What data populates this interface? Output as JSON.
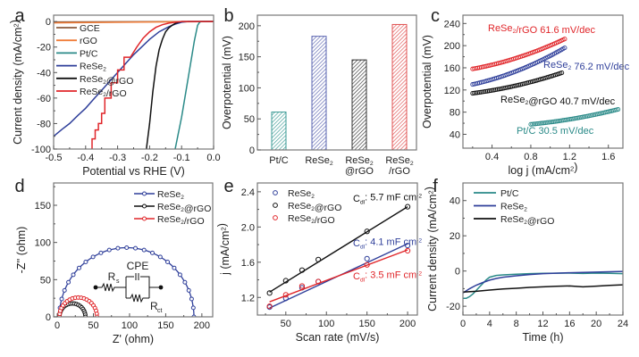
{
  "figure_title": "",
  "chart_data": [
    {
      "panel": "a",
      "type": "line",
      "title": "",
      "xlabel": "Potential vs RHE (V)",
      "ylabel": "Current density (mA/cm²)",
      "xlim": [
        -0.5,
        0.0
      ],
      "ylim": [
        -100,
        5
      ],
      "xticks": [
        "-0.5",
        "-0.4",
        "-0.3",
        "-0.2",
        "-0.1",
        "0.0"
      ],
      "yticks": [
        "0",
        "-20",
        "-40",
        "-60",
        "-80",
        "-100"
      ],
      "legend": "top-left",
      "series": [
        {
          "name": "GCE",
          "color": "#8b5a3c",
          "x": [
            -0.5,
            0.0
          ],
          "y": [
            -0.3,
            0
          ]
        },
        {
          "name": "rGO",
          "color": "#f07f3c",
          "x": [
            -0.5,
            0.0
          ],
          "y": [
            -1,
            0
          ]
        },
        {
          "name": "Pt/C",
          "color": "#2a8a88",
          "x": [
            -0.12,
            -0.1,
            -0.08,
            -0.06,
            -0.05,
            -0.045,
            -0.04,
            -0.03,
            0.0
          ],
          "y": [
            -100,
            -75,
            -45,
            -15,
            -3,
            -1,
            0,
            0,
            0
          ]
        },
        {
          "name": "ReSe₂",
          "color": "#2f3f9a",
          "x": [
            -0.5,
            -0.45,
            -0.4,
            -0.35,
            -0.3,
            -0.25,
            -0.2,
            -0.17,
            -0.14,
            -0.12,
            -0.1,
            -0.08,
            0.0
          ],
          "y": [
            -90,
            -80,
            -68,
            -54,
            -40,
            -26,
            -14,
            -8,
            -4,
            -2,
            -0.5,
            0,
            0
          ]
        },
        {
          "name": "ReSe₂@rGO",
          "color": "#111111",
          "x": [
            -0.21,
            -0.2,
            -0.19,
            -0.18,
            -0.17,
            -0.16,
            -0.15,
            -0.14,
            -0.13,
            -0.12,
            -0.11,
            -0.1,
            0.0
          ],
          "y": [
            -100,
            -80,
            -55,
            -35,
            -22,
            -14,
            -8,
            -5,
            -3,
            -1.5,
            -0.5,
            0,
            0
          ]
        },
        {
          "name": "ReSe₂/rGO",
          "color": "#e0262a",
          "x": [
            -0.38,
            -0.37,
            -0.36,
            -0.35,
            -0.34,
            -0.32,
            -0.3,
            -0.28,
            -0.26,
            -0.24,
            -0.22,
            -0.2,
            -0.18,
            -0.16,
            -0.14,
            -0.12,
            -0.1,
            0.0
          ],
          "y": [
            -100,
            -92,
            -85,
            -80,
            -72,
            -60,
            -48,
            -38,
            -28,
            -20,
            -13,
            -8,
            -4.5,
            -2.5,
            -1.2,
            -0.5,
            0,
            0
          ]
        }
      ]
    },
    {
      "panel": "b",
      "type": "bar",
      "title": "",
      "xlabel": "",
      "ylabel": "Overpotential (mV)",
      "ylim": [
        0,
        217
      ],
      "yticks": [
        "0",
        "50",
        "100",
        "150",
        "200"
      ],
      "categories": [
        "Pt/C",
        "ReSe₂",
        "ReSe₂ @rGO",
        "ReSe₂ /rGO"
      ],
      "category_lines": [
        [
          "Pt/C"
        ],
        [
          "ReSe₂"
        ],
        [
          "ReSe₂",
          "@rGO"
        ],
        [
          "ReSe₂",
          "/rGO"
        ]
      ],
      "values": [
        61,
        183,
        145,
        202
      ],
      "colors": [
        "#3a9a94",
        "#5a64b0",
        "#333333",
        "#e05050"
      ]
    },
    {
      "panel": "c",
      "type": "scatter",
      "title": "",
      "xlabel": "log j (mA/cm²)",
      "ylabel": "Overpotential (mV)",
      "xlim": [
        0.1,
        1.75
      ],
      "ylim": [
        15,
        255
      ],
      "xticks": [
        "0.4",
        "0.8",
        "1.2",
        "1.6"
      ],
      "yticks": [
        "40",
        "80",
        "120",
        "160",
        "200",
        "240"
      ],
      "series": [
        {
          "name": "ReSe₂/rGO",
          "color": "#e0262a",
          "annotation": "ReSe₂/rGO  61.6 mV/dec",
          "x_range": [
            0.2,
            1.15
          ],
          "y_range": [
            158,
            212
          ]
        },
        {
          "name": "ReSe₂",
          "color": "#2f3f9a",
          "annotation": "ReSe₂  76.2 mV/dec",
          "x_range": [
            0.2,
            1.15
          ],
          "y_range": [
            130,
            196
          ]
        },
        {
          "name": "ReSe₂@rGO",
          "color": "#111111",
          "annotation": "ReSe₂@rGO  40.7 mV/dec",
          "x_range": [
            0.2,
            1.12
          ],
          "y_range": [
            114,
            151
          ]
        },
        {
          "name": "Pt/C",
          "color": "#2a8a88",
          "annotation": "Pt/C  30.5 mV/dec",
          "x_range": [
            0.8,
            1.7
          ],
          "y_range": [
            58,
            85
          ]
        }
      ]
    },
    {
      "panel": "d",
      "type": "scatter",
      "title": "",
      "xlabel": "Z' (ohm)",
      "ylabel": "-Z'' (ohm)",
      "xlim": [
        -5,
        215
      ],
      "ylim": [
        0,
        180
      ],
      "xticks": [
        "0",
        "50",
        "100",
        "150",
        "200"
      ],
      "yticks": [
        "0",
        "50",
        "100",
        "150"
      ],
      "legend": "top-right",
      "series": [
        {
          "name": "ReSe₂",
          "color": "#2f3f9a",
          "center": 96,
          "radius": 93
        },
        {
          "name": "ReSe₂@rGO",
          "color": "#111111",
          "center": 21,
          "radius": 18
        },
        {
          "name": "ReSe₂/rGO",
          "color": "#e0262a",
          "center": 29,
          "radius": 26
        }
      ],
      "circuit": {
        "labels": [
          "Rs",
          "CPE",
          "Rct"
        ]
      }
    },
    {
      "panel": "e",
      "type": "scatter",
      "title": "",
      "xlabel": "Scan rate (mV/s)",
      "ylabel": "j (mA/cm²)",
      "xlim": [
        15,
        212
      ],
      "ylim": [
        1.0,
        2.5
      ],
      "xticks": [
        "50",
        "100",
        "150",
        "200"
      ],
      "yticks": [
        "1.2",
        "1.6",
        "2.0",
        "2.4"
      ],
      "legend": "top-left",
      "series": [
        {
          "name": "ReSe₂",
          "color": "#2f3f9a",
          "x": [
            30,
            50,
            70,
            90,
            150,
            200
          ],
          "y": [
            1.09,
            1.19,
            1.31,
            1.38,
            1.64,
            1.79
          ],
          "fit": [
            [
              30,
              1.08
            ],
            [
              200,
              1.81
            ]
          ],
          "annotation": "4.1 mF cm⁻²"
        },
        {
          "name": "ReSe₂@rGO",
          "color": "#111111",
          "x": [
            30,
            50,
            70,
            90,
            150,
            200
          ],
          "y": [
            1.25,
            1.39,
            1.51,
            1.63,
            1.95,
            2.23
          ],
          "fit": [
            [
              30,
              1.26
            ],
            [
              200,
              2.23
            ]
          ],
          "annotation": "5.7 mF cm⁻²"
        },
        {
          "name": "ReSe₂/rGO",
          "color": "#e0262a",
          "x": [
            30,
            50,
            70,
            90,
            150,
            200
          ],
          "y": [
            1.1,
            1.23,
            1.33,
            1.38,
            1.57,
            1.73
          ],
          "fit": [
            [
              30,
              1.15
            ],
            [
              200,
              1.74
            ]
          ],
          "annotation": "3.5 mF cm⁻²"
        }
      ]
    },
    {
      "panel": "f",
      "type": "line",
      "title": "",
      "xlabel": "Time (h)",
      "ylabel": "Current density (mA/cm²)",
      "xlim": [
        0,
        24
      ],
      "ylim": [
        -25,
        50
      ],
      "xticks": [
        "0",
        "4",
        "8",
        "12",
        "16",
        "20",
        "24"
      ],
      "yticks": [
        "-20",
        "0",
        "20",
        "40"
      ],
      "legend": "top-left",
      "series": [
        {
          "name": "Pt/C",
          "color": "#2a8a88",
          "x": [
            0,
            0.5,
            1,
            1.5,
            2,
            2.5,
            3,
            3.5,
            4,
            5,
            6,
            8,
            10,
            12,
            16,
            18,
            20,
            22,
            24
          ],
          "y": [
            -15.5,
            -15.5,
            -14.5,
            -13,
            -11,
            -9,
            -7,
            -5,
            -3.5,
            -2.5,
            -2.2,
            -1.8,
            -1.5,
            -1.3,
            -1.2,
            -1.4,
            -1.2,
            -1.3,
            -1.5
          ]
        },
        {
          "name": "ReSe₂",
          "color": "#2f3f9a",
          "x": [
            0,
            1,
            2,
            3,
            4,
            5,
            6,
            8,
            10,
            12,
            16,
            20,
            24
          ],
          "y": [
            -12.5,
            -10,
            -8,
            -6.5,
            -5.2,
            -4.2,
            -3.5,
            -2.7,
            -2,
            -1.5,
            -1,
            -0.6,
            -0.2
          ]
        },
        {
          "name": "ReSe₂@rGO",
          "color": "#111111",
          "x": [
            0,
            2,
            4,
            6,
            8,
            10,
            12,
            14,
            16,
            18,
            20,
            22,
            24
          ],
          "y": [
            -12,
            -11.5,
            -10.8,
            -10.2,
            -9.8,
            -9.3,
            -9,
            -8.7,
            -8.5,
            -9,
            -8.6,
            -8.2,
            -7.8
          ]
        }
      ]
    }
  ]
}
